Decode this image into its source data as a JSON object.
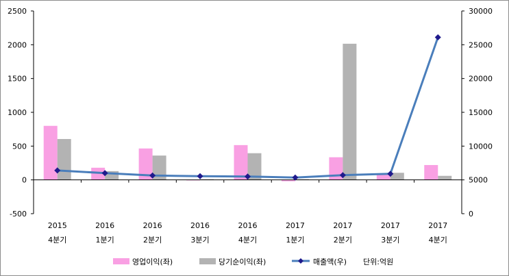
{
  "chart_data": {
    "type": "bar",
    "categories": [
      [
        "2015",
        "4분기"
      ],
      [
        "2016",
        "1분기"
      ],
      [
        "2016",
        "2분기"
      ],
      [
        "2016",
        "3분기"
      ],
      [
        "2016",
        "4분기"
      ],
      [
        "2017",
        "1분기"
      ],
      [
        "2017",
        "2분기"
      ],
      [
        "2017",
        "3분기"
      ],
      [
        "2017",
        "4분기"
      ]
    ],
    "series": [
      {
        "name": "영업이익(좌)",
        "type": "bar",
        "axis": "left",
        "color": "#f9a0e3",
        "values": [
          800,
          180,
          465,
          0,
          515,
          -20,
          335,
          90,
          220
        ]
      },
      {
        "name": "당기순이익(좌)",
        "type": "bar",
        "axis": "left",
        "color": "#b3b3b3",
        "values": [
          605,
          130,
          360,
          10,
          395,
          10,
          2015,
          105,
          60
        ]
      },
      {
        "name": "매출액(우)",
        "type": "line",
        "axis": "right",
        "color": "#4a7ebb",
        "marker_color": "#1f1a8c",
        "values": [
          6400,
          6000,
          5650,
          5550,
          5500,
          5350,
          5700,
          5900,
          26100
        ]
      }
    ],
    "left_axis": {
      "ylim": [
        -500,
        2500
      ],
      "ticks": [
        -500,
        0,
        500,
        1000,
        1500,
        2000,
        2500
      ]
    },
    "right_axis": {
      "ylim": [
        0,
        30000
      ],
      "ticks": [
        0,
        5000,
        10000,
        15000,
        20000,
        25000,
        30000
      ]
    },
    "unit_note": "단위:억원",
    "legend_position": "bottom",
    "grid": false
  }
}
